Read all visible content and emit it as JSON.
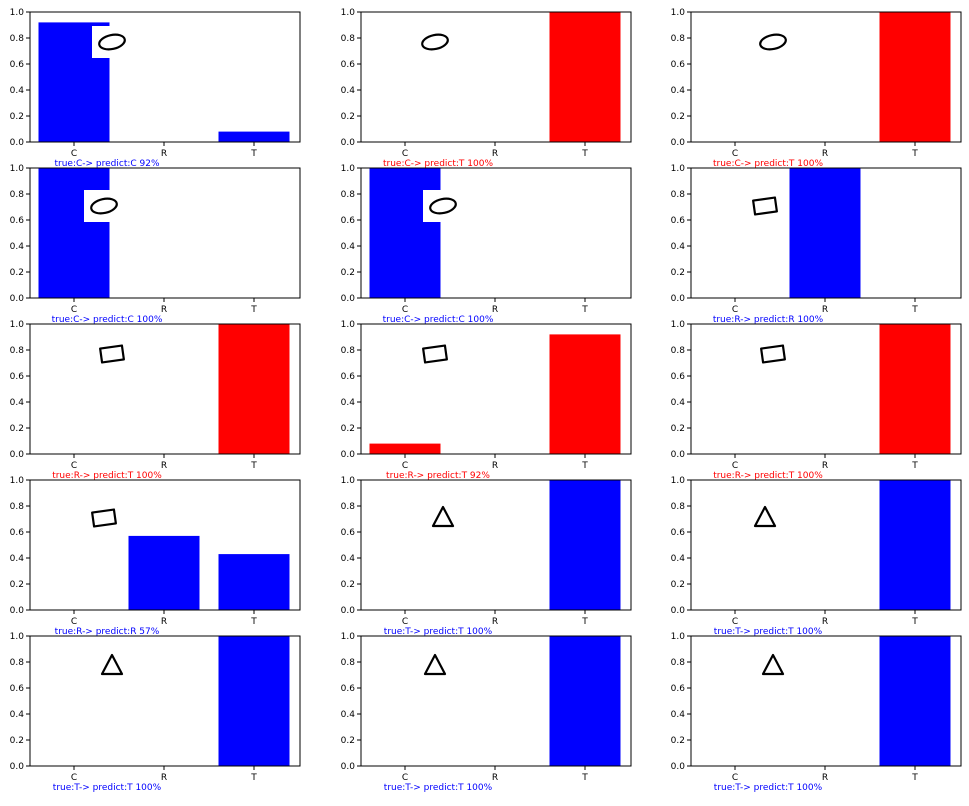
{
  "chart_data": [
    {
      "type": "bar",
      "categories": [
        "C",
        "R",
        "T"
      ],
      "values": [
        0.92,
        0.0,
        0.08
      ],
      "ylim": [
        0,
        1.0
      ],
      "yticks": [
        "0.0",
        "0.2",
        "0.4",
        "0.6",
        "0.8",
        "1.0"
      ],
      "caption": "true:C->  predict:C 92%",
      "color": "#0000ff",
      "shape": "ellipse"
    },
    {
      "type": "bar",
      "categories": [
        "C",
        "R",
        "T"
      ],
      "values": [
        0.0,
        0.0,
        1.0
      ],
      "ylim": [
        0,
        1.0
      ],
      "yticks": [
        "0.0",
        "0.2",
        "0.4",
        "0.6",
        "0.8",
        "1.0"
      ],
      "caption": "true:C->  predict:T 100%",
      "color": "#ff0000",
      "shape": "ellipse"
    },
    {
      "type": "bar",
      "categories": [
        "C",
        "R",
        "T"
      ],
      "values": [
        0.0,
        0.0,
        1.0
      ],
      "ylim": [
        0,
        1.0
      ],
      "yticks": [
        "0.0",
        "0.2",
        "0.4",
        "0.6",
        "0.8",
        "1.0"
      ],
      "caption": "true:C->  predict:T 100%",
      "color": "#ff0000",
      "shape": "ellipse"
    },
    {
      "type": "bar",
      "categories": [
        "C",
        "R",
        "T"
      ],
      "values": [
        1.0,
        0.0,
        0.0
      ],
      "ylim": [
        0,
        1.0
      ],
      "yticks": [
        "0.0",
        "0.2",
        "0.4",
        "0.6",
        "0.8",
        "1.0"
      ],
      "caption": "true:C->  predict:C 100%",
      "color": "#0000ff",
      "shape": "ellipse"
    },
    {
      "type": "bar",
      "categories": [
        "C",
        "R",
        "T"
      ],
      "values": [
        1.0,
        0.0,
        0.0
      ],
      "ylim": [
        0,
        1.0
      ],
      "yticks": [
        "0.0",
        "0.2",
        "0.4",
        "0.6",
        "0.8",
        "1.0"
      ],
      "caption": "true:C->  predict:C 100%",
      "color": "#0000ff",
      "shape": "ellipse"
    },
    {
      "type": "bar",
      "categories": [
        "C",
        "R",
        "T"
      ],
      "values": [
        0.0,
        1.0,
        0.0
      ],
      "ylim": [
        0,
        1.0
      ],
      "yticks": [
        "0.0",
        "0.2",
        "0.4",
        "0.6",
        "0.8",
        "1.0"
      ],
      "caption": "true:R->  predict:R 100%",
      "color": "#0000ff",
      "shape": "rect"
    },
    {
      "type": "bar",
      "categories": [
        "C",
        "R",
        "T"
      ],
      "values": [
        0.0,
        0.0,
        1.0
      ],
      "ylim": [
        0,
        1.0
      ],
      "yticks": [
        "0.0",
        "0.2",
        "0.4",
        "0.6",
        "0.8",
        "1.0"
      ],
      "caption": "true:R->  predict:T 100%",
      "color": "#ff0000",
      "shape": "rect"
    },
    {
      "type": "bar",
      "categories": [
        "C",
        "R",
        "T"
      ],
      "values": [
        0.08,
        0.0,
        0.92
      ],
      "ylim": [
        0,
        1.0
      ],
      "yticks": [
        "0.0",
        "0.2",
        "0.4",
        "0.6",
        "0.8",
        "1.0"
      ],
      "caption": "true:R->  predict:T 92%",
      "color": "#ff0000",
      "shape": "rect"
    },
    {
      "type": "bar",
      "categories": [
        "C",
        "R",
        "T"
      ],
      "values": [
        0.0,
        0.0,
        1.0
      ],
      "ylim": [
        0,
        1.0
      ],
      "yticks": [
        "0.0",
        "0.2",
        "0.4",
        "0.6",
        "0.8",
        "1.0"
      ],
      "caption": "true:R->  predict:T 100%",
      "color": "#ff0000",
      "shape": "rect"
    },
    {
      "type": "bar",
      "categories": [
        "C",
        "R",
        "T"
      ],
      "values": [
        0.0,
        0.57,
        0.43
      ],
      "ylim": [
        0,
        1.0
      ],
      "yticks": [
        "0.0",
        "0.2",
        "0.4",
        "0.6",
        "0.8",
        "1.0"
      ],
      "caption": "true:R->  predict:R 57%",
      "color": "#0000ff",
      "shape": "rect"
    },
    {
      "type": "bar",
      "categories": [
        "C",
        "R",
        "T"
      ],
      "values": [
        0.0,
        0.0,
        1.0
      ],
      "ylim": [
        0,
        1.0
      ],
      "yticks": [
        "0.0",
        "0.2",
        "0.4",
        "0.6",
        "0.8",
        "1.0"
      ],
      "caption": "true:T->  predict:T 100%",
      "color": "#0000ff",
      "shape": "triangle"
    },
    {
      "type": "bar",
      "categories": [
        "C",
        "R",
        "T"
      ],
      "values": [
        0.0,
        0.0,
        1.0
      ],
      "ylim": [
        0,
        1.0
      ],
      "yticks": [
        "0.0",
        "0.2",
        "0.4",
        "0.6",
        "0.8",
        "1.0"
      ],
      "caption": "true:T->  predict:T 100%",
      "color": "#0000ff",
      "shape": "triangle"
    },
    {
      "type": "bar",
      "categories": [
        "C",
        "R",
        "T"
      ],
      "values": [
        0.0,
        0.0,
        1.0
      ],
      "ylim": [
        0,
        1.0
      ],
      "yticks": [
        "0.0",
        "0.2",
        "0.4",
        "0.6",
        "0.8",
        "1.0"
      ],
      "caption": "true:T->  predict:T 100%",
      "color": "#0000ff",
      "shape": "triangle"
    },
    {
      "type": "bar",
      "categories": [
        "C",
        "R",
        "T"
      ],
      "values": [
        0.0,
        0.0,
        1.0
      ],
      "ylim": [
        0,
        1.0
      ],
      "yticks": [
        "0.0",
        "0.2",
        "0.4",
        "0.6",
        "0.8",
        "1.0"
      ],
      "caption": "true:T->  predict:T 100%",
      "color": "#0000ff",
      "shape": "triangle"
    },
    {
      "type": "bar",
      "categories": [
        "C",
        "R",
        "T"
      ],
      "values": [
        0.0,
        0.0,
        1.0
      ],
      "ylim": [
        0,
        1.0
      ],
      "yticks": [
        "0.0",
        "0.2",
        "0.4",
        "0.6",
        "0.8",
        "1.0"
      ],
      "caption": "true:T->  predict:T 100%",
      "color": "#0000ff",
      "shape": "triangle"
    }
  ]
}
